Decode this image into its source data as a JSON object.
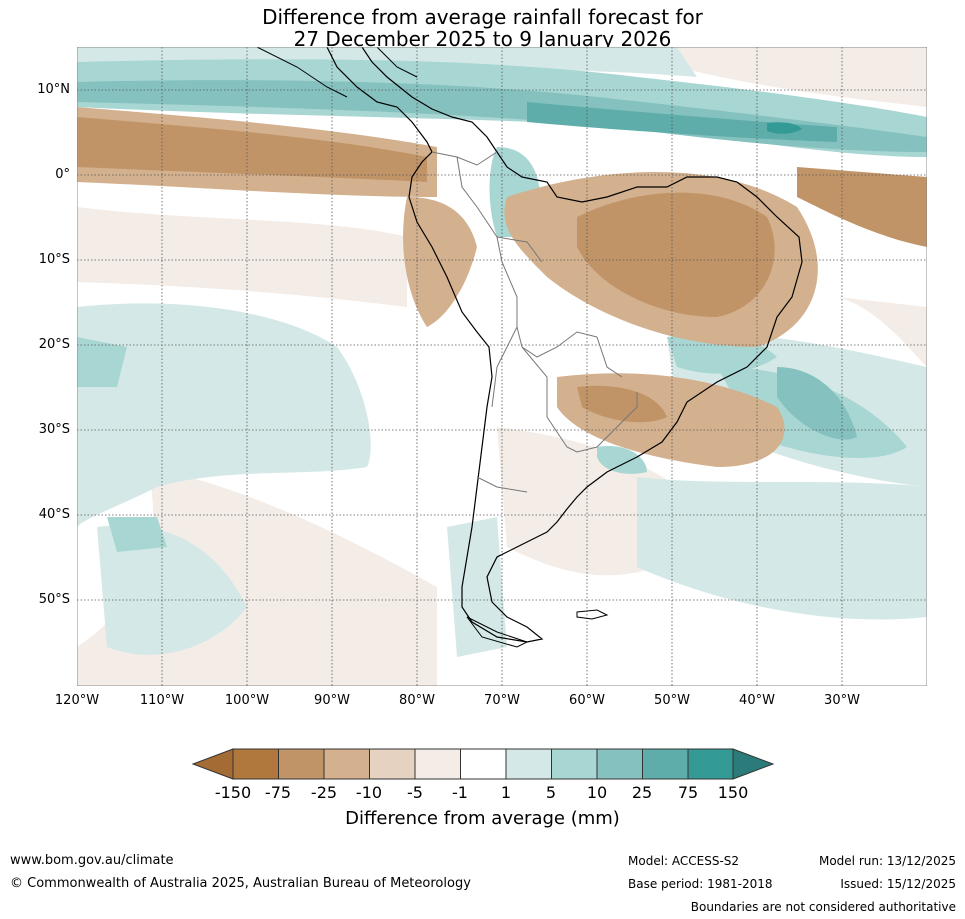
{
  "title": {
    "line1": "Difference from average rainfall forecast for",
    "line2": "27 December 2025 to 9 January 2026"
  },
  "map": {
    "region": "South America",
    "lat_labels": [
      "10°N",
      "0°",
      "10°S",
      "20°S",
      "30°S",
      "40°S",
      "50°S"
    ],
    "lon_labels": [
      "120°W",
      "110°W",
      "100°W",
      "90°W",
      "80°W",
      "70°W",
      "60°W",
      "50°W",
      "40°W",
      "30°W"
    ]
  },
  "legend": {
    "ticks": [
      "-150",
      "-75",
      "-25",
      "-10",
      "-5",
      "-1",
      "1",
      "5",
      "10",
      "25",
      "75",
      "150"
    ],
    "colors": [
      "#a56b35",
      "#b0783c",
      "#c19468",
      "#d3b08e",
      "#e6d2c1",
      "#f4ece6",
      "#ffffff",
      "#d4e9e7",
      "#a8d6d3",
      "#84c1bf",
      "#5eadaa",
      "#349a96",
      "#2a7b79"
    ],
    "label": "Difference from average (mm)"
  },
  "footer": {
    "website": "www.bom.gov.au/climate",
    "copyright": "© Commonwealth of Australia 2025, Australian Bureau of Meteorology",
    "model": "Model: ACCESS-S2",
    "base_period": "Base period: 1981-2018",
    "model_run": "Model run: 13/12/2025",
    "issued": "Issued: 15/12/2025",
    "disclaimer": "Boundaries are not considered authoritative"
  }
}
